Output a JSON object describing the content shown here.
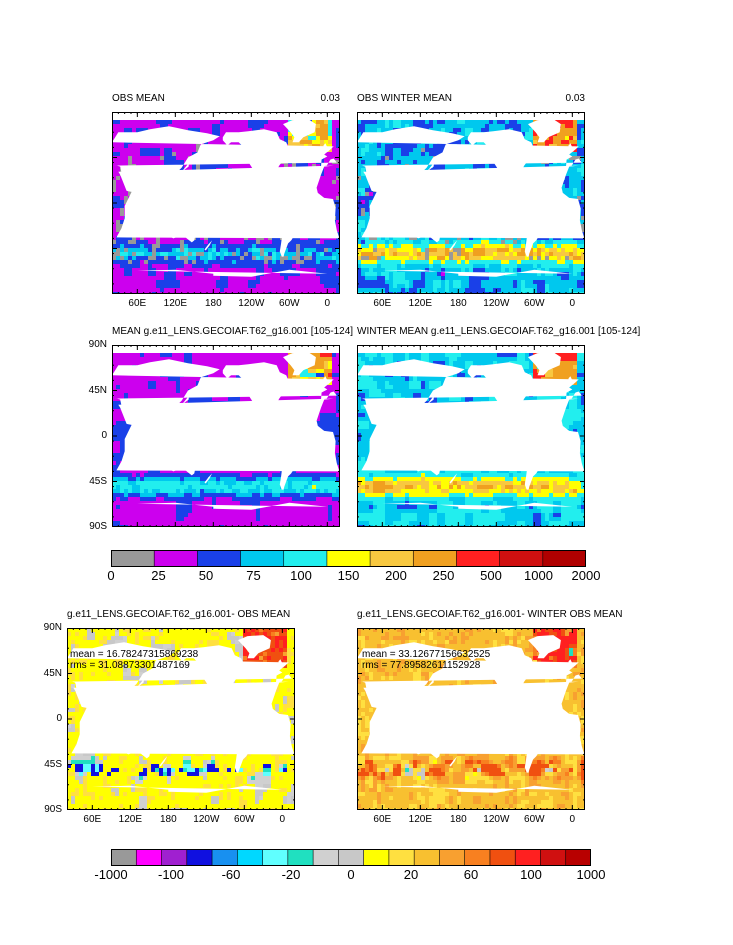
{
  "panels": [
    {
      "id": "obs-mean",
      "title_left": "OBS MEAN",
      "title_right": "0.03",
      "xticks": [
        "60E",
        "120E",
        "180",
        "120W",
        "60W",
        "0"
      ],
      "yticks": [],
      "stats": null,
      "colormap": "mld",
      "variant": "obs"
    },
    {
      "id": "obs-winter-mean",
      "title_left": "OBS WINTER MEAN",
      "title_right": "0.03",
      "xticks": [
        "60E",
        "120E",
        "180",
        "120W",
        "60W",
        "0"
      ],
      "yticks": [],
      "stats": null,
      "colormap": "mld",
      "variant": "obs-winter"
    },
    {
      "id": "model-mean",
      "title_left": "MEAN g.e11_LENS.GECOIAF.T62_g16.001 [105-124]",
      "title_right": "",
      "xticks": [],
      "yticks": [
        "90N",
        "45N",
        "0",
        "45S",
        "90S"
      ],
      "stats": null,
      "colormap": "mld",
      "variant": "model"
    },
    {
      "id": "model-winter-mean",
      "title_left": "WINTER MEAN g.e11_LENS.GECOIAF.T62_g16.001 [105-124]",
      "title_right": "",
      "xticks": [],
      "yticks": [],
      "stats": null,
      "colormap": "mld",
      "variant": "model-winter"
    },
    {
      "id": "diff-mean",
      "title_left": "g.e11_LENS.GECOIAF.T62_g16.001- OBS MEAN",
      "title_right": "",
      "xticks": [
        "60E",
        "120E",
        "180",
        "120W",
        "60W",
        "0"
      ],
      "yticks": [
        "90N",
        "45N",
        "0",
        "45S",
        "90S"
      ],
      "stats": {
        "mean": "mean = 16.78247315869238",
        "rms": "rms = 31.08873301487169"
      },
      "colormap": "diff",
      "variant": "diff"
    },
    {
      "id": "diff-winter-mean",
      "title_left": "g.e11_LENS.GECOIAF.T62_g16.001- WINTER OBS MEAN",
      "title_right": "",
      "xticks": [
        "60E",
        "120E",
        "180",
        "120W",
        "60W",
        "0"
      ],
      "yticks": [],
      "stats": {
        "mean": "mean = 33.12677156632525",
        "rms": "rms = 77.89582611152928"
      },
      "colormap": "diff",
      "variant": "diff-winter"
    }
  ],
  "colorbar_top": {
    "colors": [
      "#999999",
      "#cc00ee",
      "#1a40e8",
      "#00c8ee",
      "#22eeee",
      "#ffff00",
      "#f8c840",
      "#f0a020",
      "#ff2020",
      "#d01010",
      "#b00000"
    ],
    "labels": [
      "0",
      "25",
      "50",
      "75",
      "100",
      "150",
      "200",
      "250",
      "500",
      "1000",
      "2000"
    ]
  },
  "colorbar_bottom": {
    "colors": [
      "#999999",
      "#ff00ff",
      "#a020d0",
      "#1010e0",
      "#1890f0",
      "#00d8ff",
      "#60ffff",
      "#20e0c0",
      "#d0d0d0",
      "#c8c8c8",
      "#ffff00",
      "#ffe040",
      "#f8c030",
      "#f8a030",
      "#f88020",
      "#f05010",
      "#ff2020",
      "#d01010",
      "#b80000"
    ],
    "labels": [
      "-1000",
      "-100",
      "-60",
      "-20",
      "0",
      "20",
      "60",
      "100",
      "1000"
    ]
  }
}
